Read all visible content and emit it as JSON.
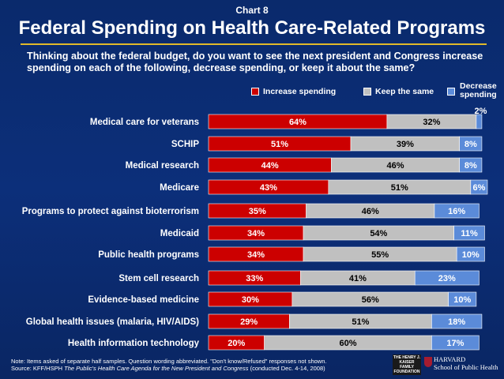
{
  "chart_label": "Chart 8",
  "title": "Federal Spending on Health Care-Related Programs",
  "question": "Thinking about the federal budget, do you want to see the next president and Congress increase spending on each of the following, decrease spending, or keep it about the same?",
  "legend": {
    "increase": "Increase spending",
    "same": "Keep the same",
    "decrease_line1": "Decrease",
    "decrease_line2": "spending"
  },
  "colors": {
    "increase": "#cc0000",
    "same": "#c0c0c0",
    "decrease": "#5b8bd9",
    "background": "#0b2a6e"
  },
  "note_line1": "Note: Items asked of separate half samples.  Question wording abbreviated.  \"Don't know/Refused\" responses not shown.",
  "note_line2_prefix": "Source: KFF/HSPH ",
  "note_line2_title": "The Public's Health Care Agenda for the New President and Congress",
  "note_line2_suffix": " (conducted Dec. 4-14, 2008)",
  "logo_kff": "THE HENRY J. KAISER FAMILY FOUNDATION",
  "logo_harvard_1": "HARVARD",
  "logo_harvard_2": "School of Public Health",
  "chart_data": {
    "type": "bar",
    "orientation": "horizontal",
    "stacked": true,
    "categories": [
      "Medical care for veterans",
      "SCHIP",
      "Medical research",
      "Medicare",
      "Programs to protect against bioterrorism",
      "Medicaid",
      "Public health programs",
      "Stem cell research",
      "Evidence-based medicine",
      "Global health issues (malaria, HIV/AIDS)",
      "Health information technology"
    ],
    "series": [
      {
        "name": "Increase spending",
        "values": [
          64,
          51,
          44,
          43,
          35,
          34,
          34,
          33,
          30,
          29,
          20
        ]
      },
      {
        "name": "Keep the same",
        "values": [
          32,
          39,
          46,
          51,
          46,
          54,
          55,
          41,
          56,
          51,
          60
        ]
      },
      {
        "name": "Decrease spending",
        "values": [
          2,
          8,
          8,
          6,
          16,
          11,
          10,
          23,
          10,
          18,
          17
        ]
      }
    ],
    "value_format": "%",
    "legend_position": "top-right"
  }
}
